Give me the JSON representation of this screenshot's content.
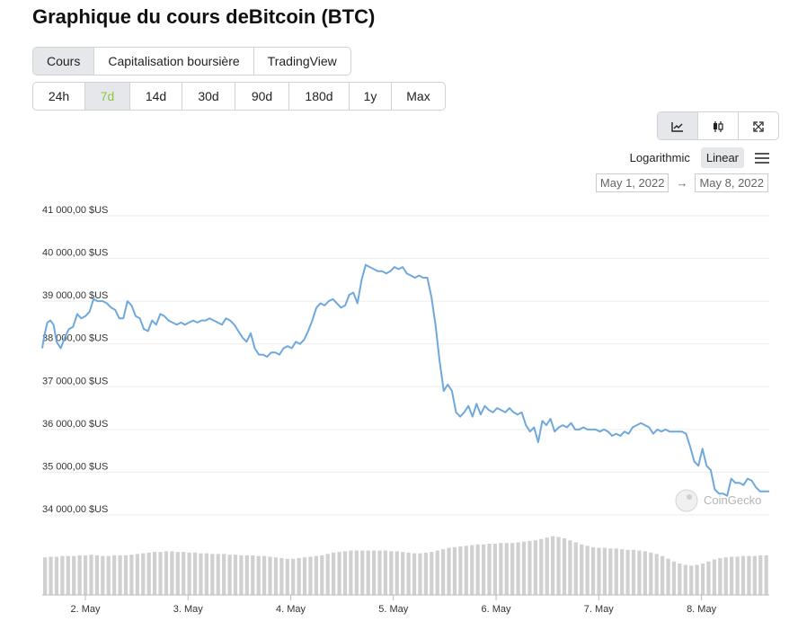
{
  "page_title": "Graphique du cours deBitcoin (BTC)",
  "tabs": [
    {
      "label": "Cours",
      "active": true
    },
    {
      "label": "Capitalisation boursière",
      "active": false
    },
    {
      "label": "TradingView",
      "active": false
    }
  ],
  "ranges": [
    {
      "label": "24h",
      "active": false
    },
    {
      "label": "7d",
      "active": true
    },
    {
      "label": "14d",
      "active": false
    },
    {
      "label": "30d",
      "active": false
    },
    {
      "label": "90d",
      "active": false
    },
    {
      "label": "180d",
      "active": false
    },
    {
      "label": "1y",
      "active": false
    },
    {
      "label": "Max",
      "active": false
    }
  ],
  "chart_types": [
    {
      "icon": "line-chart-icon",
      "active": true
    },
    {
      "icon": "candlestick-icon",
      "active": false
    },
    {
      "icon": "expand-icon",
      "active": false
    }
  ],
  "scale": {
    "logarithmic_label": "Logarithmic",
    "linear_label": "Linear",
    "selected": "Linear"
  },
  "date_range": {
    "from": "May 1, 2022",
    "to": "May 8, 2022"
  },
  "watermark": "CoinGecko",
  "colors": {
    "line": "#6fa8dc",
    "volume": "#d0d0d0",
    "grid": "#ededed",
    "active_range": "#8dc63f"
  },
  "chart_data": {
    "type": "line",
    "title": "",
    "xlabel": "",
    "ylabel": "",
    "ylim": [
      33700,
      41000
    ],
    "y_ticks": [
      34000,
      35000,
      36000,
      37000,
      38000,
      39000,
      40000,
      41000
    ],
    "y_tick_labels": [
      "34 000,00 $US",
      "35 000,00 $US",
      "36 000,00 $US",
      "37 000,00 $US",
      "38 000,00 $US",
      "39 000,00 $US",
      "40 000,00 $US",
      "41 000,00 $US"
    ],
    "x_tick_labels": [
      "2. May",
      "3. May",
      "4. May",
      "5. May",
      "6. May",
      "7. May",
      "8. May"
    ],
    "x_tick_days": [
      2,
      3,
      4,
      5,
      6,
      7,
      8
    ],
    "x_range_days": [
      1.58,
      8.66
    ],
    "grid": true,
    "series": [
      {
        "values": [
          [
            1.58,
            37900
          ],
          [
            1.6,
            38200
          ],
          [
            1.63,
            38500
          ],
          [
            1.66,
            38550
          ],
          [
            1.69,
            38450
          ],
          [
            1.72,
            38050
          ],
          [
            1.76,
            37900
          ],
          [
            1.8,
            38150
          ],
          [
            1.84,
            38350
          ],
          [
            1.88,
            38400
          ],
          [
            1.92,
            38700
          ],
          [
            1.96,
            38600
          ],
          [
            2.0,
            38650
          ],
          [
            2.04,
            38750
          ],
          [
            2.08,
            39050
          ],
          [
            2.12,
            39000
          ],
          [
            2.17,
            39000
          ],
          [
            2.21,
            38950
          ],
          [
            2.25,
            38850
          ],
          [
            2.29,
            38800
          ],
          [
            2.33,
            38600
          ],
          [
            2.37,
            38600
          ],
          [
            2.41,
            39000
          ],
          [
            2.45,
            38900
          ],
          [
            2.49,
            38650
          ],
          [
            2.53,
            38600
          ],
          [
            2.57,
            38350
          ],
          [
            2.61,
            38300
          ],
          [
            2.65,
            38550
          ],
          [
            2.69,
            38450
          ],
          [
            2.73,
            38700
          ],
          [
            2.77,
            38650
          ],
          [
            2.81,
            38550
          ],
          [
            2.85,
            38500
          ],
          [
            2.89,
            38450
          ],
          [
            2.93,
            38500
          ],
          [
            2.97,
            38450
          ],
          [
            3.01,
            38500
          ],
          [
            3.05,
            38550
          ],
          [
            3.09,
            38500
          ],
          [
            3.13,
            38550
          ],
          [
            3.17,
            38550
          ],
          [
            3.21,
            38600
          ],
          [
            3.25,
            38550
          ],
          [
            3.29,
            38500
          ],
          [
            3.33,
            38450
          ],
          [
            3.37,
            38600
          ],
          [
            3.41,
            38550
          ],
          [
            3.45,
            38450
          ],
          [
            3.49,
            38300
          ],
          [
            3.53,
            38150
          ],
          [
            3.57,
            38050
          ],
          [
            3.61,
            38250
          ],
          [
            3.65,
            37900
          ],
          [
            3.69,
            37750
          ],
          [
            3.73,
            37750
          ],
          [
            3.77,
            37700
          ],
          [
            3.81,
            37800
          ],
          [
            3.85,
            37800
          ],
          [
            3.89,
            37750
          ],
          [
            3.93,
            37900
          ],
          [
            3.97,
            37950
          ],
          [
            4.01,
            37900
          ],
          [
            4.05,
            38050
          ],
          [
            4.09,
            38000
          ],
          [
            4.13,
            38100
          ],
          [
            4.17,
            38300
          ],
          [
            4.21,
            38550
          ],
          [
            4.25,
            38850
          ],
          [
            4.29,
            38950
          ],
          [
            4.33,
            38900
          ],
          [
            4.37,
            39000
          ],
          [
            4.41,
            39050
          ],
          [
            4.45,
            38950
          ],
          [
            4.49,
            38850
          ],
          [
            4.53,
            38900
          ],
          [
            4.57,
            39150
          ],
          [
            4.61,
            39200
          ],
          [
            4.65,
            38950
          ],
          [
            4.69,
            39500
          ],
          [
            4.73,
            39850
          ],
          [
            4.77,
            39800
          ],
          [
            4.81,
            39750
          ],
          [
            4.85,
            39700
          ],
          [
            4.89,
            39700
          ],
          [
            4.93,
            39650
          ],
          [
            4.97,
            39700
          ],
          [
            5.01,
            39800
          ],
          [
            5.05,
            39750
          ],
          [
            5.09,
            39800
          ],
          [
            5.13,
            39650
          ],
          [
            5.17,
            39600
          ],
          [
            5.21,
            39550
          ],
          [
            5.25,
            39600
          ],
          [
            5.29,
            39550
          ],
          [
            5.33,
            39550
          ],
          [
            5.37,
            39100
          ],
          [
            5.41,
            38450
          ],
          [
            5.45,
            37600
          ],
          [
            5.49,
            36900
          ],
          [
            5.53,
            37050
          ],
          [
            5.57,
            36900
          ],
          [
            5.61,
            36400
          ],
          [
            5.65,
            36300
          ],
          [
            5.69,
            36400
          ],
          [
            5.73,
            36550
          ],
          [
            5.77,
            36300
          ],
          [
            5.81,
            36600
          ],
          [
            5.85,
            36350
          ],
          [
            5.89,
            36550
          ],
          [
            5.93,
            36450
          ],
          [
            5.97,
            36400
          ],
          [
            6.01,
            36500
          ],
          [
            6.05,
            36450
          ],
          [
            6.09,
            36400
          ],
          [
            6.13,
            36500
          ],
          [
            6.17,
            36400
          ],
          [
            6.21,
            36350
          ],
          [
            6.25,
            36400
          ],
          [
            6.29,
            36100
          ],
          [
            6.33,
            35950
          ],
          [
            6.37,
            36050
          ],
          [
            6.41,
            35700
          ],
          [
            6.45,
            36200
          ],
          [
            6.49,
            36100
          ],
          [
            6.53,
            36250
          ],
          [
            6.57,
            35950
          ],
          [
            6.61,
            36050
          ],
          [
            6.65,
            36100
          ],
          [
            6.69,
            36050
          ],
          [
            6.73,
            36150
          ],
          [
            6.77,
            36000
          ],
          [
            6.81,
            36000
          ],
          [
            6.85,
            36050
          ],
          [
            6.89,
            36000
          ],
          [
            6.93,
            36000
          ],
          [
            6.97,
            36000
          ],
          [
            7.01,
            35950
          ],
          [
            7.05,
            36000
          ],
          [
            7.09,
            35950
          ],
          [
            7.13,
            35850
          ],
          [
            7.17,
            35900
          ],
          [
            7.21,
            35850
          ],
          [
            7.25,
            35950
          ],
          [
            7.29,
            35900
          ],
          [
            7.33,
            36050
          ],
          [
            7.37,
            36100
          ],
          [
            7.41,
            36150
          ],
          [
            7.45,
            36100
          ],
          [
            7.49,
            36050
          ],
          [
            7.53,
            35900
          ],
          [
            7.57,
            36000
          ],
          [
            7.61,
            35950
          ],
          [
            7.65,
            36000
          ],
          [
            7.69,
            35950
          ],
          [
            7.73,
            35950
          ],
          [
            7.77,
            35950
          ],
          [
            7.81,
            35950
          ],
          [
            7.85,
            35900
          ],
          [
            7.89,
            35600
          ],
          [
            7.93,
            35250
          ],
          [
            7.97,
            35150
          ],
          [
            8.01,
            35550
          ],
          [
            8.05,
            35150
          ],
          [
            8.09,
            35050
          ],
          [
            8.13,
            34600
          ],
          [
            8.17,
            34500
          ],
          [
            8.21,
            34500
          ],
          [
            8.25,
            34450
          ],
          [
            8.29,
            34850
          ],
          [
            8.33,
            34750
          ],
          [
            8.37,
            34750
          ],
          [
            8.41,
            34700
          ],
          [
            8.45,
            34850
          ],
          [
            8.49,
            34800
          ],
          [
            8.53,
            34650
          ],
          [
            8.57,
            34550
          ],
          [
            8.62,
            34550
          ],
          [
            8.66,
            34550
          ]
        ]
      }
    ],
    "volume_series": [
      0.55,
      0.56,
      0.56,
      0.57,
      0.57,
      0.57,
      0.58,
      0.58,
      0.59,
      0.58,
      0.57,
      0.57,
      0.58,
      0.58,
      0.58,
      0.59,
      0.6,
      0.61,
      0.62,
      0.63,
      0.63,
      0.64,
      0.64,
      0.63,
      0.63,
      0.62,
      0.62,
      0.61,
      0.61,
      0.6,
      0.6,
      0.6,
      0.59,
      0.59,
      0.58,
      0.58,
      0.58,
      0.57,
      0.57,
      0.56,
      0.55,
      0.54,
      0.53,
      0.53,
      0.54,
      0.55,
      0.56,
      0.57,
      0.58,
      0.6,
      0.62,
      0.63,
      0.64,
      0.65,
      0.65,
      0.65,
      0.65,
      0.65,
      0.65,
      0.65,
      0.64,
      0.64,
      0.63,
      0.62,
      0.61,
      0.61,
      0.62,
      0.63,
      0.65,
      0.67,
      0.69,
      0.7,
      0.71,
      0.72,
      0.73,
      0.74,
      0.74,
      0.75,
      0.75,
      0.76,
      0.76,
      0.76,
      0.77,
      0.78,
      0.79,
      0.8,
      0.82,
      0.84,
      0.86,
      0.85,
      0.83,
      0.8,
      0.77,
      0.74,
      0.72,
      0.7,
      0.69,
      0.69,
      0.68,
      0.68,
      0.67,
      0.66,
      0.66,
      0.65,
      0.64,
      0.62,
      0.6,
      0.57,
      0.53,
      0.49,
      0.46,
      0.44,
      0.43,
      0.44,
      0.46,
      0.49,
      0.52,
      0.54,
      0.55,
      0.56,
      0.56,
      0.57,
      0.57,
      0.57,
      0.58,
      0.58
    ]
  }
}
